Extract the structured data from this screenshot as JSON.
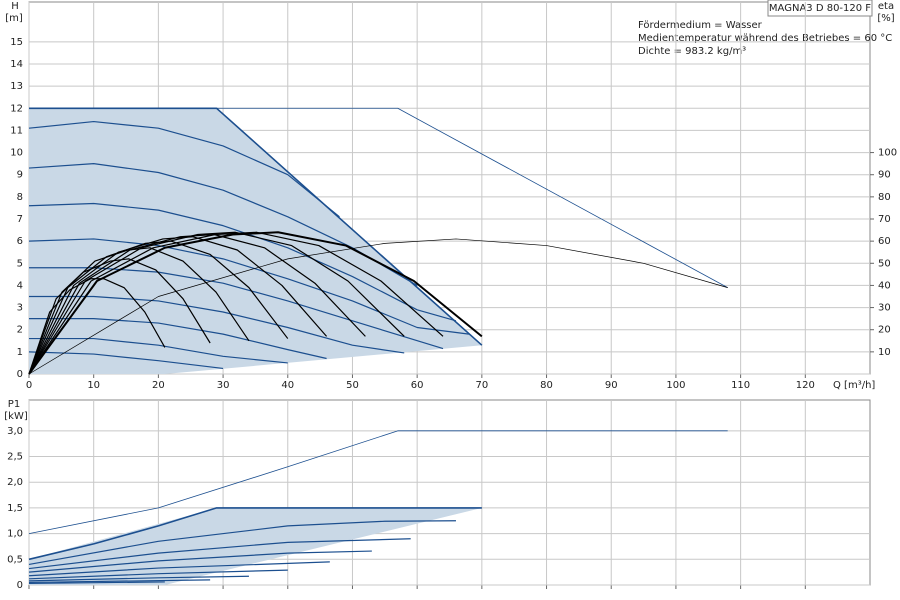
{
  "chart_data": [
    {
      "type": "line",
      "y_label": "H",
      "y_unit": "[m]",
      "y2_label": "eta",
      "y2_unit": "[%]",
      "x_label": "Q [m³/h]",
      "model": "MAGNA3 D 80-120 F",
      "annotations": [
        "Fördermedium = Wasser",
        "Medientemperatur während des Betriebes = 60 °C",
        "Dichte = 983.2 kg/m³"
      ],
      "xlim": [
        0,
        130
      ],
      "xticks": [
        0,
        10,
        20,
        30,
        40,
        50,
        60,
        70,
        80,
        90,
        100,
        110,
        120
      ],
      "ylim": [
        0,
        16.8
      ],
      "yticks": [
        0,
        1,
        2,
        3,
        4,
        5,
        6,
        7,
        8,
        9,
        10,
        11,
        12,
        13,
        14,
        15
      ],
      "y2lim": [
        0,
        168
      ],
      "y2ticks": [
        10,
        20,
        30,
        40,
        50,
        60,
        70,
        80,
        90,
        100
      ],
      "grid": true,
      "show_xtick_labels": true,
      "region": {
        "color": "#c9d8e6",
        "x": [
          0,
          0,
          29,
          70,
          21
        ],
        "values": [
          0,
          12,
          12,
          1.3,
          0
        ]
      },
      "series": [
        {
          "color": "#1c4f8f",
          "width": 1.6,
          "x": [
            0,
            29,
            70
          ],
          "values": [
            12,
            12,
            1.3
          ]
        },
        {
          "color": "#1c4f8f",
          "width": 0.8,
          "x": [
            29,
            57,
            108
          ],
          "values": [
            12,
            12,
            3.9
          ]
        },
        {
          "color": "#1c4f8f",
          "width": 1.2,
          "x": [
            0,
            10,
            20,
            30,
            40,
            48
          ],
          "values": [
            11.1,
            11.4,
            11.1,
            10.3,
            9.0,
            7.1
          ]
        },
        {
          "color": "#1c4f8f",
          "width": 1.2,
          "x": [
            0,
            10,
            20,
            30,
            40,
            50,
            60
          ],
          "values": [
            9.3,
            9.5,
            9.1,
            8.3,
            7.1,
            5.7,
            4.0
          ]
        },
        {
          "color": "#1c4f8f",
          "width": 1.2,
          "x": [
            0,
            10,
            20,
            30,
            40,
            50,
            60,
            66
          ],
          "values": [
            7.6,
            7.7,
            7.4,
            6.7,
            5.7,
            4.4,
            2.9,
            2.4
          ]
        },
        {
          "color": "#1c4f8f",
          "width": 1.2,
          "x": [
            0,
            10,
            20,
            30,
            40,
            50,
            60,
            68
          ],
          "values": [
            6.0,
            6.1,
            5.8,
            5.2,
            4.3,
            3.3,
            2.1,
            1.8
          ]
        },
        {
          "color": "#1c4f8f",
          "width": 1.2,
          "x": [
            0,
            10,
            20,
            30,
            40,
            50,
            64
          ],
          "values": [
            4.8,
            4.8,
            4.6,
            4.1,
            3.3,
            2.4,
            1.15
          ]
        },
        {
          "color": "#1c4f8f",
          "width": 1.2,
          "x": [
            0,
            10,
            20,
            30,
            40,
            50,
            58
          ],
          "values": [
            3.5,
            3.5,
            3.3,
            2.8,
            2.1,
            1.3,
            0.95
          ]
        },
        {
          "color": "#1c4f8f",
          "width": 1.2,
          "x": [
            0,
            10,
            20,
            30,
            40,
            46
          ],
          "values": [
            2.5,
            2.5,
            2.3,
            1.8,
            1.1,
            0.7
          ]
        },
        {
          "color": "#1c4f8f",
          "width": 1.2,
          "x": [
            0,
            10,
            20,
            30,
            40
          ],
          "values": [
            1.6,
            1.6,
            1.3,
            0.8,
            0.5
          ]
        },
        {
          "color": "#1c4f8f",
          "width": 1.2,
          "x": [
            0,
            10,
            20,
            30
          ],
          "values": [
            1.0,
            0.9,
            0.6,
            0.25
          ]
        },
        {
          "color": "#000000",
          "width": 1.2,
          "axis": "y2",
          "x": [
            0,
            3.2,
            6.3,
            9.5,
            11.6,
            14.7,
            17.9,
            21
          ],
          "values": [
            0,
            28,
            38,
            43,
            43,
            39,
            28,
            12
          ]
        },
        {
          "color": "#000000",
          "width": 1.2,
          "axis": "y2",
          "x": [
            0,
            4.2,
            8.4,
            12.6,
            15.4,
            19.6,
            23.8,
            28
          ],
          "values": [
            0,
            34,
            46,
            51,
            52,
            47,
            34,
            14
          ]
        },
        {
          "color": "#000000",
          "width": 1.2,
          "axis": "y2",
          "x": [
            0,
            5.1,
            10.2,
            15.3,
            18.7,
            23.8,
            28.9,
            34
          ],
          "values": [
            0,
            37,
            51,
            56,
            57,
            51,
            37,
            15
          ]
        },
        {
          "color": "#000000",
          "width": 1.2,
          "axis": "y2",
          "x": [
            0,
            6,
            12,
            18,
            22,
            28,
            34,
            40
          ],
          "values": [
            0,
            39,
            53,
            59,
            60,
            54,
            39,
            16
          ]
        },
        {
          "color": "#000000",
          "width": 1.2,
          "axis": "y2",
          "x": [
            0,
            6.9,
            13.8,
            20.7,
            25.3,
            32.2,
            39.1,
            46
          ],
          "values": [
            0,
            40,
            55,
            61,
            62,
            56,
            40,
            17
          ]
        },
        {
          "color": "#000000",
          "width": 1.2,
          "axis": "y2",
          "x": [
            0,
            7.8,
            15.6,
            23.4,
            28.6,
            36.4,
            44.2,
            52
          ],
          "values": [
            0,
            41,
            56,
            62,
            63,
            57,
            41,
            17
          ]
        },
        {
          "color": "#000000",
          "width": 1.2,
          "axis": "y2",
          "x": [
            0,
            8.7,
            17.4,
            26.1,
            31.9,
            40.6,
            49.3,
            58
          ],
          "values": [
            0,
            42,
            57,
            63,
            64,
            58,
            42,
            17
          ]
        },
        {
          "color": "#000000",
          "width": 1.2,
          "axis": "y2",
          "x": [
            0,
            9.6,
            19.2,
            28.8,
            35.2,
            44.8,
            54.4,
            64
          ],
          "values": [
            0,
            42,
            57,
            63,
            64,
            58,
            42,
            17
          ]
        },
        {
          "color": "#000000",
          "width": 2,
          "axis": "y2",
          "x": [
            0,
            10.5,
            21,
            31.5,
            38.5,
            49,
            59.5,
            70
          ],
          "values": [
            0,
            42,
            57,
            63,
            64,
            58,
            42,
            17
          ]
        },
        {
          "color": "#000000",
          "width": 0.7,
          "axis": "y2",
          "x": [
            0,
            20,
            40,
            55,
            66,
            80,
            95,
            108
          ],
          "values": [
            0,
            35,
            52,
            59,
            61,
            58,
            50,
            39
          ]
        }
      ]
    },
    {
      "type": "line",
      "y_label": "P1",
      "y_unit": "[kW]",
      "xlim": [
        0,
        130
      ],
      "xticks": [
        0,
        10,
        20,
        30,
        40,
        50,
        60,
        70,
        80,
        90,
        100,
        110,
        120
      ],
      "ylim": [
        0,
        3.6
      ],
      "yticks": [
        0,
        {
          "value": 0.5,
          "label": "0,5"
        },
        {
          "value": 1,
          "label": "1,0"
        },
        {
          "value": 1.5,
          "label": "1,5"
        },
        {
          "value": 2,
          "label": "2,0"
        },
        {
          "value": 2.5,
          "label": "2,5"
        },
        {
          "value": 3,
          "label": "3,0"
        }
      ],
      "grid": true,
      "show_xtick_labels": false,
      "region": {
        "color": "#c9d8e6",
        "x": [
          0,
          0,
          29,
          70,
          21
        ],
        "values": [
          0,
          0.5,
          1.5,
          1.5,
          0
        ]
      },
      "series": [
        {
          "color": "#1c4f8f",
          "width": 1.6,
          "x": [
            0,
            10,
            20,
            29,
            70
          ],
          "values": [
            0.5,
            0.8,
            1.15,
            1.5,
            1.5
          ]
        },
        {
          "color": "#1c4f8f",
          "width": 0.8,
          "x": [
            0,
            20,
            40,
            57,
            108
          ],
          "values": [
            1.0,
            1.5,
            2.3,
            3.0,
            3.0
          ]
        },
        {
          "color": "#1c4f8f",
          "width": 1.2,
          "x": [
            0,
            20,
            40,
            55,
            66
          ],
          "values": [
            0.4,
            0.85,
            1.15,
            1.24,
            1.25
          ]
        },
        {
          "color": "#1c4f8f",
          "width": 1.2,
          "x": [
            0,
            20,
            40,
            59
          ],
          "values": [
            0.32,
            0.62,
            0.83,
            0.9
          ]
        },
        {
          "color": "#1c4f8f",
          "width": 1.2,
          "x": [
            0,
            20,
            40,
            53
          ],
          "values": [
            0.25,
            0.47,
            0.62,
            0.66
          ]
        },
        {
          "color": "#1c4f8f",
          "width": 1.2,
          "x": [
            0,
            20,
            46.5
          ],
          "values": [
            0.18,
            0.33,
            0.45
          ]
        },
        {
          "color": "#1c4f8f",
          "width": 1.2,
          "x": [
            0,
            20,
            40
          ],
          "values": [
            0.12,
            0.22,
            0.29
          ]
        },
        {
          "color": "#1c4f8f",
          "width": 1.2,
          "x": [
            0,
            20,
            34
          ],
          "values": [
            0.08,
            0.14,
            0.17
          ]
        },
        {
          "color": "#1c4f8f",
          "width": 1.2,
          "x": [
            0,
            28
          ],
          "values": [
            0.05,
            0.1
          ]
        },
        {
          "color": "#1c4f8f",
          "width": 1.2,
          "x": [
            0,
            21
          ],
          "values": [
            0.03,
            0.06
          ]
        }
      ]
    }
  ]
}
